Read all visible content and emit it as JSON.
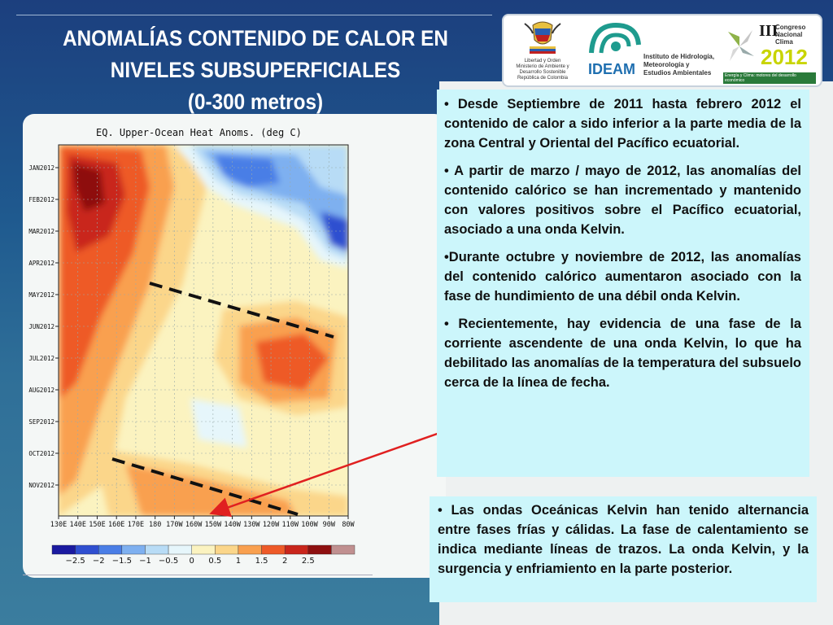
{
  "slide": {
    "title_lines": [
      "ANOMALÍAS CONTENIDO DE CALOR EN",
      "NIVELES SUBSUPERFICIALES",
      "(0-300 metros)"
    ]
  },
  "logos": {
    "ministerio": [
      "Libertad y Orden",
      "Ministerio de Ambiente y",
      "Desarrollo Sostenible",
      "República de Colombia"
    ],
    "ideam_name": "IDEAM",
    "ideam_text": [
      "Instituto de Hidrología,",
      "Meteorología y",
      "Estudios Ambientales"
    ],
    "congreso_numeral": "III",
    "congreso_text": [
      "Congreso",
      "Nacional",
      "Clima"
    ],
    "congreso_year": "2012",
    "congreso_tagline": "Energía y Clima: motores del desarrollo económico"
  },
  "chart_data": {
    "type": "heatmap",
    "title": "EQ. Upper-Ocean Heat Anoms. (deg C)",
    "x_ticks": [
      "130E",
      "140E",
      "150E",
      "160E",
      "170E",
      "180",
      "170W",
      "160W",
      "150W",
      "140W",
      "130W",
      "120W",
      "110W",
      "100W",
      "90W",
      "80W"
    ],
    "y_ticks": [
      "JAN2012",
      "FEB2012",
      "MAR2012",
      "APR2012",
      "MAY2012",
      "JUN2012",
      "JUL2012",
      "AUG2012",
      "SEP2012",
      "OCT2012",
      "NOV2012"
    ],
    "colorbar_labels": [
      "−2.5",
      "−2",
      "−1.5",
      "−1",
      "−0.5",
      "0",
      "0.5",
      "1",
      "1.5",
      "2",
      "2.5"
    ],
    "colorbar_colors": [
      "#1a1aa0",
      "#2f4fd0",
      "#4a7ee6",
      "#7eb0f0",
      "#b8dcf6",
      "#e6f6fb",
      "#fbf3c0",
      "#fbd68a",
      "#f9a04f",
      "#ee5a28",
      "#c9261c",
      "#8e1010",
      "#c09090"
    ]
  },
  "text_boxes": {
    "main": [
      "• Desde Septiembre de 2011 hasta febrero 2012 el contenido de calor a sido inferior a la parte media de la zona Central y Oriental del Pacífico ecuatorial.",
      "• A partir de marzo / mayo de 2012, las anomalías del contenido calórico se han incrementado y mantenido con valores positivos sobre el Pacífico ecuatorial, asociado a una onda Kelvin.",
      "•Durante octubre y noviembre de 2012, las anomalías del contenido calórico aumentaron asociado con la fase de hundimiento de una débil onda Kelvin.",
      "•  Recientemente, hay evidencia de una fase de la corriente ascendente de una onda Kelvin, lo que ha debilitado las anomalías de la temperatura del subsuelo cerca de la línea de fecha."
    ],
    "bottom": "• Las ondas Oceánicas Kelvin han tenido alternancia entre fases frías y cálidas. La fase de calentamiento se indica mediante líneas de trazos. La onda Kelvin, y la surgencia y enfriamiento en la parte posterior."
  }
}
